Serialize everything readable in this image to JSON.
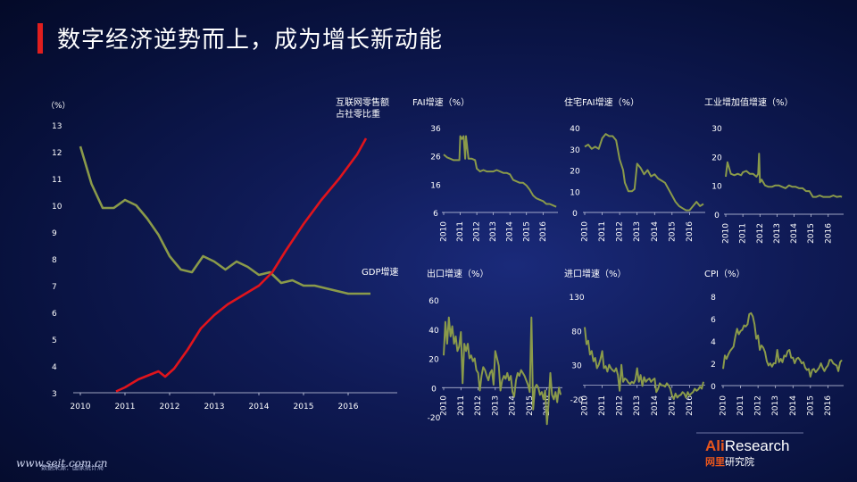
{
  "title": "数字经济逆势而上，成为增长新动能",
  "footer": {
    "website": "www.seit.com.cn",
    "note": "数据来源：国家统计局"
  },
  "logo": {
    "brand_latin_a": "Ali",
    "brand_latin_b": "Research",
    "brand_cn_a": "网里",
    "brand_cn_b": "研究院"
  },
  "colors": {
    "green": "#8a9a4a",
    "red": "#e0141c",
    "accent": "#e01e1e"
  },
  "chart_data": [
    {
      "id": "main",
      "type": "line",
      "unit_label": "（%）",
      "ylim": [
        3,
        13
      ],
      "yticks": [
        "13",
        "12",
        "11",
        "10",
        "9",
        "8",
        "7",
        "6",
        "5",
        "4",
        "3"
      ],
      "xlim": [
        2010,
        2016.8
      ],
      "xticks": [
        "2010",
        "2011",
        "2012",
        "2013",
        "2014",
        "2015",
        "2016"
      ],
      "series": [
        {
          "name": "GDP增速",
          "color": "#8a9a4a",
          "x": [
            2010.0,
            2010.25,
            2010.5,
            2010.75,
            2011.0,
            2011.25,
            2011.5,
            2011.75,
            2012.0,
            2012.25,
            2012.5,
            2012.75,
            2013.0,
            2013.25,
            2013.5,
            2013.75,
            2014.0,
            2014.25,
            2014.5,
            2014.75,
            2015.0,
            2015.25,
            2015.5,
            2015.75,
            2016.0,
            2016.25,
            2016.5
          ],
          "y": [
            12.2,
            10.8,
            9.9,
            9.9,
            10.2,
            10.0,
            9.5,
            8.9,
            8.1,
            7.6,
            7.5,
            8.1,
            7.9,
            7.6,
            7.9,
            7.7,
            7.4,
            7.5,
            7.1,
            7.2,
            7.0,
            7.0,
            6.9,
            6.8,
            6.7,
            6.7,
            6.7
          ]
        },
        {
          "name": "互联网零售额占社零比重",
          "color": "#e0141c",
          "x": [
            2010.8,
            2011.0,
            2011.3,
            2011.6,
            2011.75,
            2011.9,
            2012.1,
            2012.4,
            2012.7,
            2013.0,
            2013.3,
            2013.6,
            2014.0,
            2014.3,
            2014.6,
            2015.0,
            2015.4,
            2015.8,
            2016.2,
            2016.4
          ],
          "y": [
            3.05,
            3.2,
            3.5,
            3.7,
            3.8,
            3.6,
            3.9,
            4.6,
            5.4,
            5.9,
            6.3,
            6.6,
            7.0,
            7.5,
            8.3,
            9.3,
            10.2,
            11.0,
            11.9,
            12.5
          ]
        }
      ]
    },
    {
      "id": "fai",
      "type": "line",
      "title": "FAI增速（%）",
      "ylim": [
        6,
        36
      ],
      "yticks": [
        "36",
        "26",
        "16",
        "6"
      ],
      "xticks": [
        "2010",
        "2011",
        "2012",
        "2013",
        "2014",
        "2015",
        "2016"
      ],
      "series": [
        {
          "color": "#8a9a4a",
          "x": [
            2010.0,
            2010.2,
            2010.4,
            2010.6,
            2010.8,
            2010.95,
            2011.0,
            2011.1,
            2011.2,
            2011.3,
            2011.35,
            2011.5,
            2011.7,
            2011.9,
            2012.0,
            2012.2,
            2012.4,
            2012.6,
            2012.8,
            2013.0,
            2013.2,
            2013.4,
            2013.6,
            2013.8,
            2014.0,
            2014.2,
            2014.4,
            2014.6,
            2014.8,
            2015.0,
            2015.2,
            2015.4,
            2015.6,
            2015.8,
            2016.0,
            2016.2,
            2016.4,
            2016.6,
            2016.8
          ],
          "y": [
            26.5,
            25.5,
            25,
            24.5,
            24.5,
            24.5,
            33,
            32,
            33,
            25,
            33,
            25,
            25,
            24.5,
            21.5,
            20.5,
            21,
            20.5,
            20.5,
            20.5,
            21,
            20.5,
            20,
            20,
            19.5,
            17.5,
            17,
            16.5,
            16.5,
            15.5,
            14,
            12,
            11,
            10.5,
            10,
            9,
            9,
            8.5,
            8
          ]
        }
      ]
    },
    {
      "id": "housing_fai",
      "type": "line",
      "title": "住宅FAI增速（%）",
      "ylim": [
        0,
        40
      ],
      "yticks": [
        "40",
        "30",
        "20",
        "10",
        "0"
      ],
      "xticks": [
        "2010",
        "2011",
        "2012",
        "2013",
        "2014",
        "2015",
        "2016"
      ],
      "series": [
        {
          "color": "#8a9a4a",
          "x": [
            2010.0,
            2010.2,
            2010.4,
            2010.6,
            2010.8,
            2011.0,
            2011.2,
            2011.4,
            2011.6,
            2011.8,
            2012.0,
            2012.2,
            2012.3,
            2012.5,
            2012.7,
            2012.85,
            2013.0,
            2013.2,
            2013.4,
            2013.6,
            2013.8,
            2014.0,
            2014.2,
            2014.4,
            2014.6,
            2014.8,
            2015.0,
            2015.2,
            2015.4,
            2015.6,
            2015.8,
            2016.0,
            2016.2,
            2016.4,
            2016.6,
            2016.8
          ],
          "y": [
            31,
            32,
            30,
            31,
            30,
            35,
            37,
            36,
            36,
            34,
            25,
            20,
            14,
            10,
            10,
            11,
            23,
            21,
            18,
            20,
            17,
            18,
            16,
            15,
            14,
            11,
            8,
            5,
            3,
            2,
            1,
            1,
            3,
            5,
            3,
            4
          ]
        }
      ]
    },
    {
      "id": "industrial",
      "type": "line",
      "title": "工业增加值增速（%）",
      "ylim": [
        0,
        30
      ],
      "yticks": [
        "30",
        "20",
        "10",
        "0"
      ],
      "xticks": [
        "2010",
        "2011",
        "2012",
        "2013",
        "2014",
        "2015",
        "2016"
      ],
      "series": [
        {
          "color": "#8a9a4a",
          "x": [
            2010.0,
            2010.1,
            2010.2,
            2010.3,
            2010.5,
            2010.7,
            2010.9,
            2011.0,
            2011.2,
            2011.4,
            2011.6,
            2011.8,
            2011.9,
            2011.95,
            2012.0,
            2012.1,
            2012.3,
            2012.5,
            2012.7,
            2012.9,
            2013.1,
            2013.3,
            2013.5,
            2013.7,
            2013.9,
            2014.1,
            2014.3,
            2014.5,
            2014.7,
            2014.9,
            2015.1,
            2015.3,
            2015.5,
            2015.7,
            2015.9,
            2016.1,
            2016.3,
            2016.5,
            2016.7,
            2016.8
          ],
          "y": [
            13,
            18,
            16,
            14,
            13.5,
            14,
            13.5,
            14.5,
            15,
            14,
            14,
            13,
            14,
            21,
            11,
            12,
            10,
            9.5,
            9.5,
            10,
            10,
            9.5,
            9,
            10,
            9.5,
            9.5,
            9,
            9,
            8,
            8,
            6,
            6,
            6.5,
            6,
            6,
            6,
            6.5,
            6,
            6.2,
            6
          ]
        }
      ]
    },
    {
      "id": "export",
      "type": "line",
      "title": "出口增速（%）",
      "ylim": [
        -20,
        60
      ],
      "yticks": [
        "60",
        "40",
        "20",
        "0",
        "-20"
      ],
      "xticks": [
        "2010",
        "2011",
        "2012",
        "2013",
        "2014",
        "2015",
        "2016"
      ],
      "series": [
        {
          "color": "#8a9a4a",
          "x": [
            2010.0,
            2010.1,
            2010.2,
            2010.3,
            2010.4,
            2010.5,
            2010.6,
            2010.7,
            2010.8,
            2010.9,
            2011.0,
            2011.1,
            2011.2,
            2011.3,
            2011.4,
            2011.5,
            2011.6,
            2011.7,
            2011.8,
            2011.9,
            2012.0,
            2012.1,
            2012.2,
            2012.3,
            2012.4,
            2012.5,
            2012.6,
            2012.7,
            2012.8,
            2012.9,
            2013.0,
            2013.1,
            2013.2,
            2013.3,
            2013.4,
            2013.5,
            2013.6,
            2013.7,
            2013.8,
            2013.9,
            2014.0,
            2014.1,
            2014.2,
            2014.3,
            2014.4,
            2014.5,
            2014.6,
            2014.7,
            2014.8,
            2014.9,
            2015.0,
            2015.1,
            2015.2,
            2015.3,
            2015.4,
            2015.5,
            2015.6,
            2015.7,
            2015.8,
            2015.9,
            2016.0,
            2016.1,
            2016.2,
            2016.3,
            2016.4,
            2016.5,
            2016.6,
            2016.7,
            2016.8
          ],
          "y": [
            22,
            45,
            30,
            48,
            35,
            42,
            30,
            35,
            25,
            28,
            38,
            3,
            30,
            25,
            30,
            20,
            22,
            18,
            20,
            12,
            10,
            -2,
            8,
            14,
            12,
            8,
            5,
            10,
            12,
            2,
            25,
            20,
            15,
            -2,
            5,
            8,
            6,
            10,
            5,
            8,
            -3,
            -6,
            5,
            10,
            8,
            12,
            10,
            8,
            5,
            2,
            -3,
            48,
            -15,
            0,
            2,
            0,
            -5,
            -3,
            -8,
            -2,
            -25,
            -10,
            10,
            -5,
            -8,
            -3,
            -10,
            0,
            -5
          ]
        }
      ]
    },
    {
      "id": "import",
      "type": "line",
      "title": "进口增速（%）",
      "ylim": [
        -20,
        130
      ],
      "yticks": [
        "130",
        "80",
        "30",
        "-20"
      ],
      "xticks": [
        "2010",
        "2011",
        "2012",
        "2013",
        "2014",
        "2015",
        "2016"
      ],
      "series": [
        {
          "color": "#8a9a4a",
          "x": [
            2010.0,
            2010.1,
            2010.2,
            2010.3,
            2010.4,
            2010.5,
            2010.6,
            2010.7,
            2010.8,
            2010.9,
            2011.0,
            2011.1,
            2011.2,
            2011.3,
            2011.4,
            2011.5,
            2011.6,
            2011.7,
            2011.8,
            2011.9,
            2012.0,
            2012.1,
            2012.2,
            2012.3,
            2012.4,
            2012.5,
            2012.6,
            2012.7,
            2012.8,
            2012.9,
            2013.0,
            2013.1,
            2013.2,
            2013.3,
            2013.4,
            2013.5,
            2013.6,
            2013.7,
            2013.8,
            2013.9,
            2014.0,
            2014.1,
            2014.2,
            2014.3,
            2014.4,
            2014.5,
            2014.6,
            2014.7,
            2014.8,
            2014.9,
            2015.0,
            2015.1,
            2015.2,
            2015.3,
            2015.4,
            2015.5,
            2015.6,
            2015.7,
            2015.8,
            2015.9,
            2016.0,
            2016.1,
            2016.2,
            2016.3,
            2016.4,
            2016.5,
            2016.6,
            2016.7,
            2016.8
          ],
          "y": [
            85,
            60,
            65,
            45,
            50,
            35,
            40,
            25,
            30,
            38,
            50,
            25,
            28,
            20,
            30,
            25,
            22,
            20,
            25,
            15,
            -8,
            30,
            5,
            10,
            8,
            4,
            2,
            5,
            3,
            8,
            25,
            5,
            15,
            -1,
            12,
            5,
            8,
            10,
            5,
            8,
            10,
            -10,
            -5,
            3,
            0,
            0,
            -2,
            3,
            0,
            -5,
            -15,
            -20,
            -12,
            -18,
            -15,
            -14,
            -10,
            -12,
            -18,
            -10,
            -15,
            -12,
            -10,
            -5,
            -8,
            -6,
            -2,
            -5,
            5
          ]
        }
      ]
    },
    {
      "id": "cpi",
      "type": "line",
      "title": "CPI（%）",
      "ylim": [
        0,
        8
      ],
      "yticks": [
        "8",
        "6",
        "4",
        "2",
        "0"
      ],
      "xticks": [
        "2010",
        "2011",
        "2012",
        "2013",
        "2014",
        "2015",
        "2016"
      ],
      "series": [
        {
          "color": "#8a9a4a",
          "x": [
            2010.0,
            2010.1,
            2010.2,
            2010.3,
            2010.4,
            2010.5,
            2010.6,
            2010.7,
            2010.8,
            2010.9,
            2011.0,
            2011.1,
            2011.2,
            2011.3,
            2011.4,
            2011.5,
            2011.6,
            2011.7,
            2011.8,
            2011.9,
            2012.0,
            2012.1,
            2012.2,
            2012.3,
            2012.4,
            2012.5,
            2012.6,
            2012.7,
            2012.8,
            2012.9,
            2013.0,
            2013.1,
            2013.2,
            2013.3,
            2013.4,
            2013.5,
            2013.6,
            2013.7,
            2013.8,
            2013.9,
            2014.0,
            2014.1,
            2014.2,
            2014.3,
            2014.4,
            2014.5,
            2014.6,
            2014.7,
            2014.8,
            2014.9,
            2015.0,
            2015.1,
            2015.2,
            2015.3,
            2015.4,
            2015.5,
            2015.6,
            2015.7,
            2015.8,
            2015.9,
            2016.0,
            2016.1,
            2016.2,
            2016.3,
            2016.4,
            2016.5,
            2016.6,
            2016.7,
            2016.8
          ],
          "y": [
            1.5,
            2.7,
            2.4,
            2.8,
            3.1,
            3.3,
            3.5,
            4.4,
            5.1,
            4.6,
            4.9,
            5.0,
            5.4,
            5.3,
            5.5,
            6.4,
            6.5,
            6.2,
            5.5,
            4.2,
            4.5,
            3.2,
            3.6,
            3.4,
            3.0,
            2.2,
            1.8,
            2.0,
            1.7,
            2.0,
            2.0,
            3.2,
            2.1,
            2.4,
            2.1,
            2.7,
            2.6,
            3.1,
            3.2,
            2.5,
            2.5,
            2.0,
            2.4,
            2.5,
            2.3,
            2.0,
            2.1,
            1.6,
            1.4,
            1.5,
            0.8,
            1.4,
            1.5,
            1.2,
            1.4,
            1.6,
            2.0,
            1.6,
            1.3,
            1.6,
            1.8,
            2.3,
            2.3,
            2.0,
            1.9,
            1.8,
            1.3,
            2.1,
            2.3
          ]
        }
      ]
    }
  ],
  "main_labels": {
    "gdp": "GDP增速",
    "netshare_line1": "互联网零售额",
    "netshare_line2": "占社零比重"
  }
}
